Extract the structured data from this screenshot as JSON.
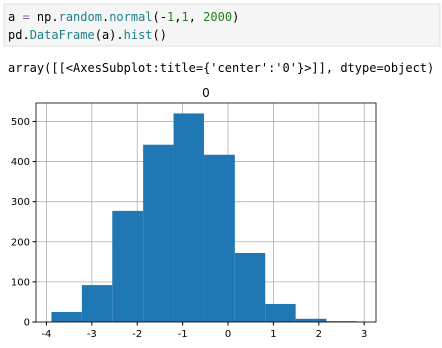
{
  "code": [
    [
      {
        "text": "a ",
        "color": "#000000"
      },
      {
        "text": "=",
        "color": "#7f5fa8"
      },
      {
        "text": " np.",
        "color": "#000000"
      },
      {
        "text": "random",
        "color": "#20808a"
      },
      {
        "text": ".",
        "color": "#000000"
      },
      {
        "text": "normal",
        "color": "#20808a"
      },
      {
        "text": "(-",
        "color": "#000000"
      },
      {
        "text": "1",
        "color": "#208020"
      },
      {
        "text": ",",
        "color": "#000000"
      },
      {
        "text": "1",
        "color": "#208020"
      },
      {
        "text": ", ",
        "color": "#000000"
      },
      {
        "text": "2000",
        "color": "#208020"
      },
      {
        "text": ")",
        "color": "#000000"
      }
    ],
    [
      {
        "text": "pd.",
        "color": "#000000"
      },
      {
        "text": "DataFrame",
        "color": "#20808a"
      },
      {
        "text": "(a).",
        "color": "#000000"
      },
      {
        "text": "hist",
        "color": "#20808a"
      },
      {
        "text": "()",
        "color": "#000000"
      }
    ]
  ],
  "output": "array([[<AxesSubplot:title={'center':'0'}>]], dtype=object)",
  "chart_data": {
    "type": "histogram",
    "title": "0",
    "bins": [
      -3.89,
      -3.22,
      -2.55,
      -1.87,
      -1.2,
      -0.53,
      0.15,
      0.82,
      1.49,
      2.17,
      2.84
    ],
    "values": [
      25,
      92,
      277,
      442,
      520,
      417,
      172,
      45,
      8,
      2
    ],
    "color": "#1f77b4",
    "xlim": [
      -4.23,
      3.26
    ],
    "xticks": [
      -4,
      -3,
      -2,
      -1,
      0,
      1,
      2,
      3
    ],
    "ylim": [
      0,
      546
    ],
    "yticks": [
      0,
      100,
      200,
      300,
      400,
      500
    ],
    "grid": true
  }
}
